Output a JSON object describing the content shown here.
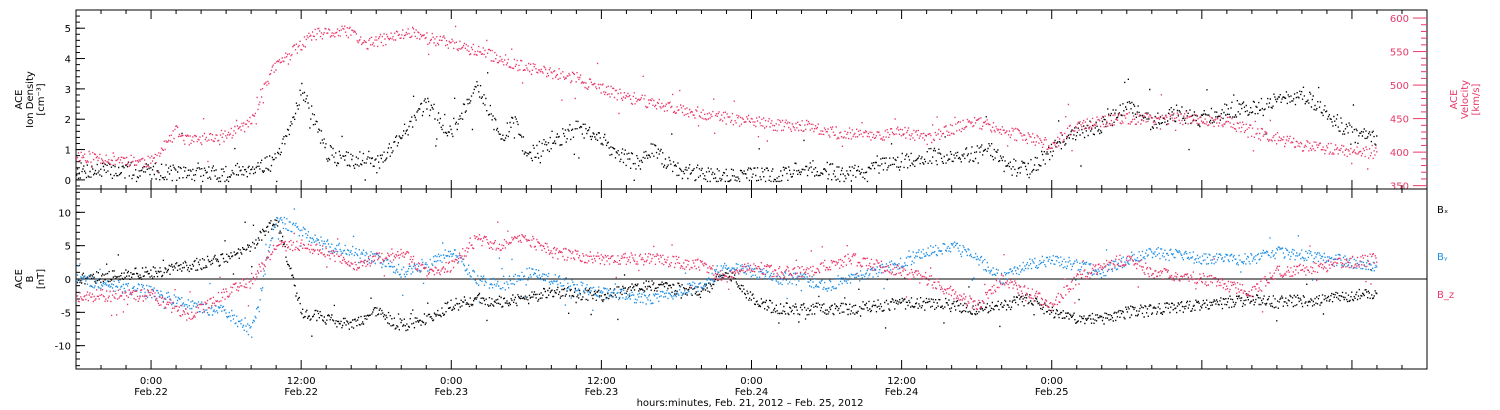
{
  "chart_data": [
    {
      "type": "scatter",
      "panel": "top",
      "left_axis": {
        "label_lines": [
          "ACE",
          "Ion Density",
          "[cm⁻³]"
        ],
        "ticks": [
          0,
          1,
          2,
          3,
          4,
          5
        ],
        "ylim": [
          -0.3,
          5.6
        ],
        "color": "#000000"
      },
      "right_axis": {
        "label_lines": [
          "ACE",
          "Velocity",
          "[km/s]"
        ],
        "ticks": [
          350,
          400,
          450,
          500,
          550,
          600
        ],
        "ylim": [
          345,
          612
        ],
        "color": "#e8386a"
      },
      "series": [
        {
          "axis": "left",
          "color": "#000000",
          "x": [
            -6,
            0,
            3,
            6,
            8,
            10,
            11,
            12,
            14,
            16,
            17,
            18,
            20,
            22,
            24,
            26,
            28,
            29,
            30,
            32,
            34,
            36,
            38,
            39,
            40,
            42,
            44,
            46,
            48,
            50,
            52,
            54,
            56,
            58,
            60,
            62,
            64,
            66,
            67,
            68,
            70,
            72,
            74,
            76,
            78,
            80,
            82,
            84,
            86,
            88,
            90,
            92,
            94,
            96,
            98
          ],
          "values": [
            0.3,
            0.3,
            0.2,
            0.2,
            0.4,
            0.6,
            1.6,
            3.0,
            0.9,
            0.6,
            0.8,
            0.5,
            1.5,
            2.5,
            1.5,
            3.2,
            1.3,
            2.0,
            0.8,
            1.2,
            1.7,
            1.3,
            0.7,
            0.5,
            1.0,
            0.3,
            0.2,
            0.1,
            0.2,
            0.1,
            0.4,
            0.3,
            0.2,
            0.4,
            0.6,
            0.8,
            0.7,
            0.9,
            1.1,
            0.5,
            0.3,
            1.0,
            1.6,
            1.8,
            2.4,
            1.9,
            2.2,
            2.0,
            2.3,
            2.4,
            2.6,
            2.8,
            2.2,
            1.5,
            1.3
          ]
        },
        {
          "axis": "right",
          "color": "#e8386a",
          "x": [
            -6,
            0,
            2,
            3,
            6,
            8,
            9,
            10,
            11,
            13,
            16,
            17,
            19,
            21,
            22,
            24,
            27,
            30,
            34,
            36,
            38,
            42,
            46,
            50,
            52,
            54,
            58,
            60,
            62,
            64,
            66,
            67,
            70,
            72,
            74,
            76,
            78,
            80,
            82,
            84,
            86,
            88,
            90,
            92,
            94,
            96,
            98
          ],
          "values": [
            395,
            385,
            430,
            415,
            425,
            445,
            500,
            530,
            545,
            575,
            580,
            560,
            570,
            580,
            570,
            562,
            545,
            525,
            510,
            493,
            482,
            465,
            450,
            440,
            440,
            430,
            425,
            430,
            420,
            435,
            445,
            440,
            420,
            410,
            440,
            445,
            450,
            450,
            450,
            448,
            445,
            430,
            420,
            410,
            405,
            400,
            398
          ]
        }
      ]
    },
    {
      "type": "scatter",
      "panel": "bottom",
      "left_axis": {
        "label_lines": [
          "ACE",
          "B",
          "[nT]"
        ],
        "ticks": [
          -10,
          -5,
          0,
          5,
          10
        ],
        "ylim": [
          -13.5,
          13.5
        ],
        "color": "#000000"
      },
      "zero_line": true,
      "series": [
        {
          "name": "Bₓ",
          "color": "#000000",
          "x": [
            -6,
            -3,
            0,
            3,
            6,
            8,
            10,
            12,
            14,
            16,
            18,
            20,
            22,
            24,
            26,
            28,
            30,
            32,
            36,
            40,
            44,
            46,
            48,
            50,
            52,
            54,
            56,
            58,
            62,
            64,
            66,
            68,
            70,
            72,
            74,
            76,
            78,
            80,
            84,
            88,
            90,
            94,
            98
          ],
          "values": [
            0,
            0.5,
            1,
            2,
            3,
            5,
            9,
            -5,
            -6,
            -7,
            -5,
            -7,
            -6,
            -4,
            -3,
            -3.5,
            -3,
            -2,
            -2.5,
            -1,
            -2,
            1,
            -3,
            -4.5,
            -4.5,
            -4.5,
            -4.5,
            -4,
            -3.5,
            -4,
            -4.5,
            -4,
            -3,
            -5,
            -6,
            -6,
            -5,
            -4.5,
            -4,
            -3,
            -3.5,
            -3,
            -2
          ]
        },
        {
          "name": "Bᵧ",
          "color": "#1f8fe6",
          "x": [
            -6,
            -3,
            0,
            3,
            6,
            8,
            10,
            12,
            14,
            16,
            18,
            20,
            22,
            24,
            26,
            28,
            30,
            32,
            36,
            40,
            44,
            46,
            48,
            50,
            52,
            54,
            56,
            58,
            62,
            64,
            66,
            68,
            70,
            72,
            74,
            76,
            78,
            80,
            84,
            88,
            90,
            94,
            98
          ],
          "values": [
            0,
            -1,
            -2,
            -4,
            -5,
            -8,
            9,
            7,
            5,
            4,
            3,
            1,
            2,
            4,
            0,
            -1,
            1,
            0,
            -2,
            -3,
            -1,
            2,
            1,
            0,
            0,
            -1,
            0,
            1,
            4,
            5,
            3,
            0,
            2,
            3,
            2,
            1,
            3,
            4,
            3,
            3,
            4,
            3,
            2
          ]
        },
        {
          "name": "B_z",
          "color": "#e8386a",
          "x": [
            -6,
            -3,
            0,
            3,
            6,
            8,
            10,
            12,
            14,
            16,
            18,
            20,
            22,
            24,
            26,
            28,
            30,
            32,
            36,
            40,
            44,
            46,
            48,
            50,
            52,
            54,
            56,
            58,
            62,
            64,
            66,
            68,
            70,
            72,
            74,
            76,
            78,
            80,
            84,
            88,
            90,
            94,
            98
          ],
          "values": [
            -2.5,
            -2.5,
            -2.5,
            -5.5,
            -2,
            0,
            5,
            5,
            4,
            2,
            3,
            4,
            1,
            2,
            6,
            5,
            6,
            4,
            3,
            3,
            2,
            0,
            2,
            1,
            1,
            2,
            3,
            2,
            0,
            -2,
            -4,
            0,
            -2,
            -4,
            0,
            2,
            3,
            1,
            0,
            -2,
            1,
            2,
            3
          ]
        }
      ],
      "legend": [
        "Bₓ",
        "Bᵧ",
        "B_z"
      ]
    }
  ],
  "x_axis": {
    "xlim": [
      -6,
      102
    ],
    "major_ticks": [
      0,
      12,
      24,
      36,
      48,
      60,
      72,
      84,
      96
    ],
    "tick_labels": [
      {
        "time": "0:00",
        "date": "Feb.22"
      },
      {
        "time": "12:00",
        "date": "Feb.22"
      },
      {
        "time": "0:00",
        "date": "Feb.23"
      },
      {
        "time": "12:00",
        "date": "Feb.23"
      },
      {
        "time": "0:00",
        "date": "Feb.24"
      },
      {
        "time": "12:00",
        "date": "Feb.24"
      },
      {
        "time": "0:00",
        "date": "Feb.25"
      }
    ],
    "label_ticks": [
      0,
      12,
      24,
      36,
      48,
      60,
      72
    ],
    "xlabel": "hours:minutes, Feb. 21, 2012 – Feb. 25, 2012"
  },
  "colors": {
    "black": "#000000",
    "magenta": "#e8386a",
    "blue": "#1f8fe6"
  }
}
